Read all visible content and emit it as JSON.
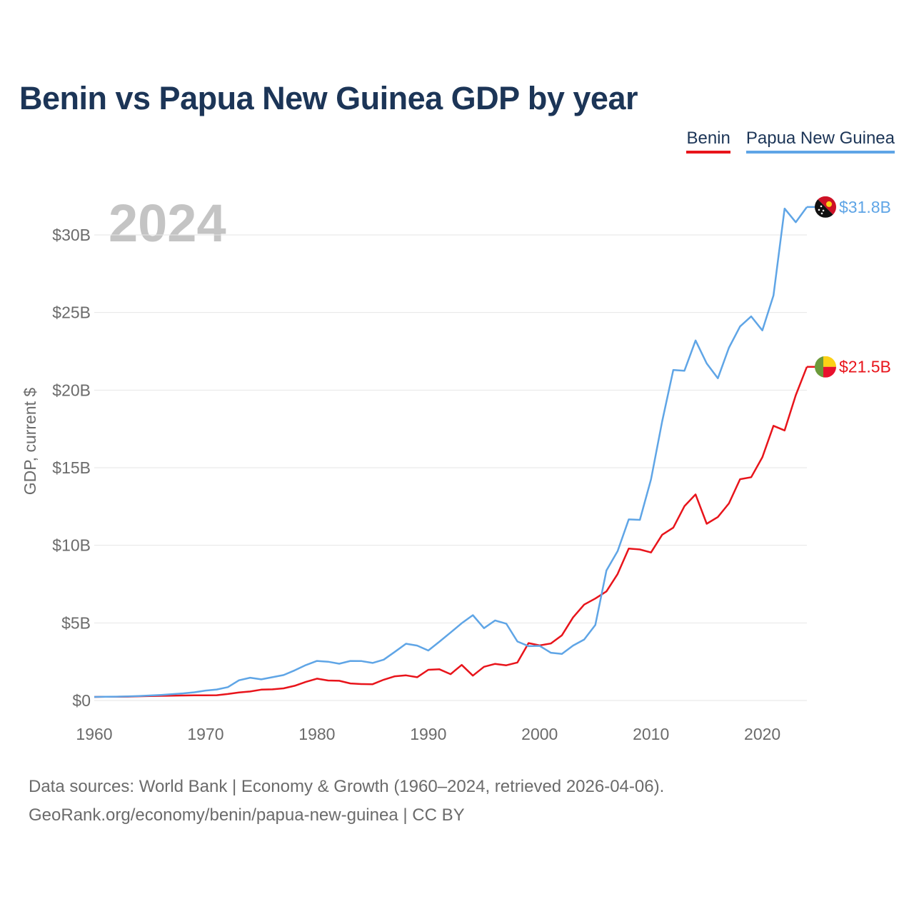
{
  "title": "Benin vs Papua New Guinea GDP by year",
  "legend": {
    "benin": "Benin",
    "png": "Papua New Guinea"
  },
  "year_label": "2024",
  "colors": {
    "benin": "#e8141b",
    "png": "#5fa5e6",
    "title": "#1c3557",
    "grid": "#e6e6e6",
    "axis_text": "#6b6b6b"
  },
  "end_labels": {
    "benin": "$21.5B",
    "png": "$31.8B"
  },
  "footer": {
    "line1": "Data sources: World Bank | Economy & Growth (1960–2024, retrieved 2026-04-06).",
    "line2": "GeoRank.org/economy/benin/papua-new-guinea | CC BY"
  },
  "chart_data": {
    "type": "line",
    "title": "Benin vs Papua New Guinea GDP by year",
    "xlabel": "",
    "ylabel": "GDP, current $",
    "xlim": [
      1960,
      2024
    ],
    "ylim": [
      0,
      32
    ],
    "x_ticks": [
      1960,
      1970,
      1980,
      1990,
      2000,
      2010,
      2020
    ],
    "y_ticks": [
      0,
      5,
      10,
      15,
      20,
      25,
      30
    ],
    "y_tick_labels": [
      "$0",
      "$5B",
      "$10B",
      "$15B",
      "$20B",
      "$25B",
      "$30B"
    ],
    "grid": true,
    "legend": "top-right",
    "x": [
      1960,
      1961,
      1962,
      1963,
      1964,
      1965,
      1966,
      1967,
      1968,
      1969,
      1970,
      1971,
      1972,
      1973,
      1974,
      1975,
      1976,
      1977,
      1978,
      1979,
      1980,
      1981,
      1982,
      1983,
      1984,
      1985,
      1986,
      1987,
      1988,
      1989,
      1990,
      1991,
      1992,
      1993,
      1994,
      1995,
      1996,
      1997,
      1998,
      1999,
      2000,
      2001,
      2002,
      2003,
      2004,
      2005,
      2006,
      2007,
      2008,
      2009,
      2010,
      2011,
      2012,
      2013,
      2014,
      2015,
      2016,
      2017,
      2018,
      2019,
      2020,
      2021,
      2022,
      2023,
      2024
    ],
    "series": [
      {
        "name": "Benin",
        "color": "#e8141b",
        "values": [
          0.23,
          0.24,
          0.24,
          0.25,
          0.27,
          0.29,
          0.3,
          0.31,
          0.32,
          0.33,
          0.33,
          0.34,
          0.42,
          0.52,
          0.58,
          0.7,
          0.72,
          0.78,
          0.95,
          1.2,
          1.41,
          1.29,
          1.27,
          1.1,
          1.06,
          1.05,
          1.34,
          1.56,
          1.62,
          1.5,
          1.98,
          2.01,
          1.7,
          2.29,
          1.6,
          2.17,
          2.36,
          2.27,
          2.45,
          3.7,
          3.55,
          3.67,
          4.2,
          5.35,
          6.18,
          6.57,
          7.03,
          8.15,
          9.79,
          9.73,
          9.54,
          10.68,
          11.14,
          12.52,
          13.28,
          11.39,
          11.82,
          12.7,
          14.26,
          14.39,
          15.67,
          17.7,
          17.4,
          19.67,
          21.5
        ]
      },
      {
        "name": "Papua New Guinea",
        "color": "#5fa5e6",
        "values": [
          0.23,
          0.24,
          0.25,
          0.26,
          0.29,
          0.32,
          0.36,
          0.41,
          0.46,
          0.53,
          0.64,
          0.71,
          0.86,
          1.3,
          1.47,
          1.36,
          1.5,
          1.64,
          1.94,
          2.28,
          2.55,
          2.5,
          2.37,
          2.55,
          2.54,
          2.42,
          2.63,
          3.14,
          3.66,
          3.54,
          3.22,
          3.79,
          4.38,
          4.98,
          5.5,
          4.66,
          5.16,
          4.95,
          3.8,
          3.5,
          3.52,
          3.08,
          3.0,
          3.54,
          3.93,
          4.87,
          8.38,
          9.62,
          11.67,
          11.64,
          14.25,
          17.98,
          21.3,
          21.25,
          23.2,
          21.72,
          20.76,
          22.73,
          24.1,
          24.75,
          23.85,
          26.1,
          31.7,
          30.82,
          31.8
        ]
      }
    ]
  }
}
